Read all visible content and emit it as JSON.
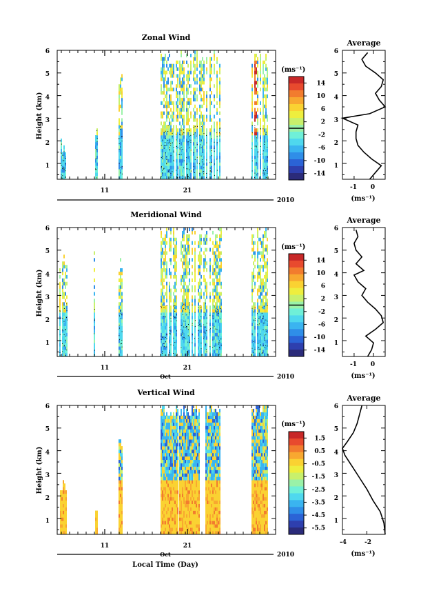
{
  "figure": {
    "xlabel": "Local Time (Day)",
    "month_label": "Oct",
    "year_label": "2010",
    "x_tick_labels": [
      "11",
      "21"
    ],
    "y_tick_labels": [
      "1",
      "2",
      "3",
      "4",
      "5",
      "6"
    ],
    "ylabel": "Height (km)",
    "unit_label": "(ms⁻¹)",
    "avg_title": "Average"
  },
  "colors": {
    "palette": [
      "#2b2b7a",
      "#2e3fae",
      "#2b63d6",
      "#2f8ee8",
      "#3ab4f0",
      "#4fd8ee",
      "#6ff0d8",
      "#9af2a8",
      "#c8f06c",
      "#eeee3e",
      "#fad232",
      "#f8a830",
      "#f27c2e",
      "#e84a2e",
      "#c82828"
    ]
  },
  "chart_data": [
    {
      "type": "heatmap",
      "title": "Zonal Wind",
      "xlabel": "",
      "ylabel": "Height (km)",
      "ylim": [
        0.3,
        6.0
      ],
      "x_ticks": [
        "11",
        "21"
      ],
      "colorbar": {
        "labels": [
          "14",
          "10",
          "6",
          "2",
          "-2",
          "-6",
          "-10",
          "-14"
        ],
        "min": -16,
        "max": 16,
        "zero_line": 0
      },
      "note_values_range_ms": [
        -16,
        16
      ],
      "average_profile": {
        "title": "Average",
        "xlabel": "(ms⁻¹)",
        "x_ticks": [
          "-1",
          "0"
        ],
        "xlim": [
          -1.6,
          0.6
        ],
        "heights_km": [
          0.3,
          0.6,
          0.9,
          1.2,
          1.5,
          1.8,
          2.1,
          2.4,
          2.7,
          3.0,
          3.2,
          3.5,
          3.8,
          4.1,
          4.4,
          4.7,
          5.0,
          5.3,
          5.6,
          5.9
        ],
        "values": [
          -0.2,
          0.1,
          0.4,
          -0.1,
          -0.5,
          -0.8,
          -0.9,
          -0.9,
          -0.8,
          -1.6,
          -0.2,
          0.6,
          0.3,
          0.1,
          0.4,
          0.5,
          0.1,
          -0.4,
          -0.6,
          -0.3
        ]
      }
    },
    {
      "type": "heatmap",
      "title": "Meridional Wind",
      "xlabel": "",
      "ylabel": "Height (km)",
      "ylim": [
        0.3,
        6.0
      ],
      "x_ticks": [
        "11",
        "21"
      ],
      "colorbar": {
        "labels": [
          "14",
          "10",
          "6",
          "2",
          "-2",
          "-6",
          "-10",
          "-14"
        ],
        "min": -16,
        "max": 16,
        "zero_line": 0
      },
      "average_profile": {
        "title": "Average",
        "xlabel": "(ms⁻¹)",
        "x_ticks": [
          "-1",
          "0"
        ],
        "xlim": [
          -1.6,
          0.6
        ],
        "heights_km": [
          0.3,
          0.6,
          0.9,
          1.2,
          1.5,
          1.8,
          2.1,
          2.4,
          2.7,
          3.0,
          3.3,
          3.6,
          3.9,
          4.1,
          4.4,
          4.7,
          5.0,
          5.3,
          5.6,
          5.9
        ],
        "values": [
          -0.3,
          -0.1,
          0.0,
          -0.4,
          0.1,
          0.5,
          0.4,
          0.1,
          -0.3,
          -0.6,
          -0.4,
          -0.8,
          -1.0,
          -0.5,
          -0.9,
          -0.6,
          -0.9,
          -1.0,
          -0.8,
          -0.9
        ]
      }
    },
    {
      "type": "heatmap",
      "title": "Vertical Wind",
      "xlabel": "Local Time (Day)",
      "ylabel": "Height (km)",
      "ylim": [
        0.3,
        6.0
      ],
      "x_ticks": [
        "11",
        "21"
      ],
      "colorbar": {
        "labels": [
          "1.5",
          "0.5",
          "-0.5",
          "-1.5",
          "-2.5",
          "-3.5",
          "-4.5",
          "-5.5"
        ],
        "min": -6,
        "max": 2,
        "zero_line": null
      },
      "average_profile": {
        "title": "Average",
        "xlabel": "(ms⁻¹)",
        "x_ticks": [
          "-4",
          "-2"
        ],
        "xlim": [
          -4.0,
          -0.5
        ],
        "heights_km": [
          0.3,
          0.8,
          1.3,
          1.8,
          2.3,
          2.8,
          3.3,
          3.8,
          4.1,
          4.4,
          4.8,
          5.2,
          5.6,
          6.0
        ],
        "values": [
          -0.5,
          -0.6,
          -0.9,
          -1.5,
          -2.0,
          -2.6,
          -3.2,
          -3.8,
          -4.0,
          -3.6,
          -3.1,
          -2.8,
          -2.6,
          -2.4
        ]
      }
    }
  ]
}
